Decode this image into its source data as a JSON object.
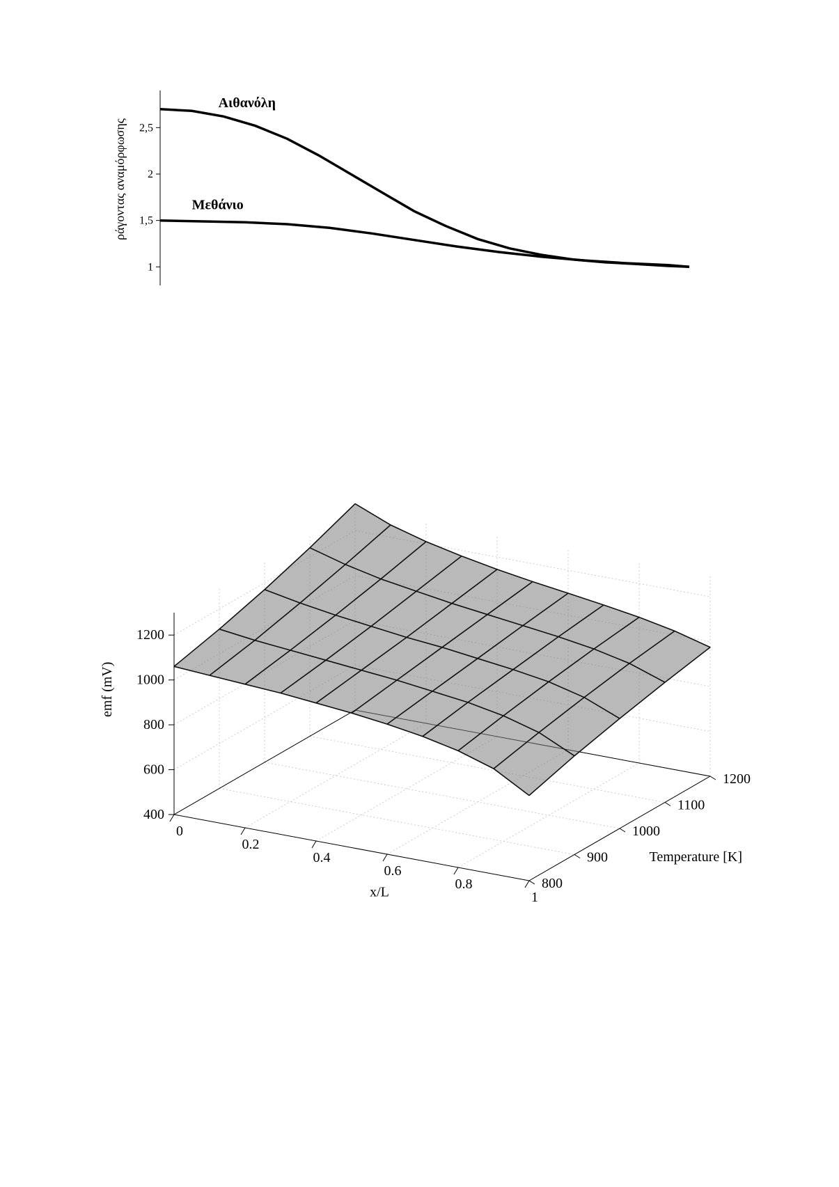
{
  "top_chart": {
    "type": "line",
    "y_axis_title": "ράγοντας αναμόρφωσης",
    "y_ticks": [
      1,
      1.5,
      2,
      2.5
    ],
    "y_tick_labels": [
      "1",
      "1,5",
      "2",
      "2,5"
    ],
    "ylim": [
      0.8,
      2.9
    ],
    "xlim": [
      0,
      1
    ],
    "line_color": "#000000",
    "line_width": 3.5,
    "axis_color": "#000000",
    "tick_fontsize": 16,
    "label_fontsize": 18,
    "series_label_fontsize": 20,
    "background_color": "#ffffff",
    "series": [
      {
        "name": "ethanol",
        "label": "Αιθανόλη",
        "label_x": 0.11,
        "label_y": 2.72,
        "points": [
          [
            0.0,
            2.7
          ],
          [
            0.06,
            2.68
          ],
          [
            0.12,
            2.62
          ],
          [
            0.18,
            2.52
          ],
          [
            0.24,
            2.38
          ],
          [
            0.3,
            2.2
          ],
          [
            0.36,
            2.0
          ],
          [
            0.42,
            1.8
          ],
          [
            0.48,
            1.6
          ],
          [
            0.54,
            1.44
          ],
          [
            0.6,
            1.3
          ],
          [
            0.66,
            1.2
          ],
          [
            0.72,
            1.13
          ],
          [
            0.78,
            1.08
          ],
          [
            0.84,
            1.05
          ],
          [
            0.9,
            1.03
          ],
          [
            0.96,
            1.01
          ],
          [
            1.0,
            1.0
          ]
        ]
      },
      {
        "name": "methane",
        "label": "Μεθάνιο",
        "label_x": 0.06,
        "label_y": 1.62,
        "points": [
          [
            0.0,
            1.5
          ],
          [
            0.08,
            1.49
          ],
          [
            0.16,
            1.48
          ],
          [
            0.24,
            1.46
          ],
          [
            0.32,
            1.42
          ],
          [
            0.4,
            1.36
          ],
          [
            0.48,
            1.29
          ],
          [
            0.56,
            1.22
          ],
          [
            0.64,
            1.16
          ],
          [
            0.72,
            1.11
          ],
          [
            0.8,
            1.07
          ],
          [
            0.88,
            1.04
          ],
          [
            0.96,
            1.02
          ],
          [
            1.0,
            1.0
          ]
        ]
      }
    ]
  },
  "bottom_chart": {
    "type": "surface3d",
    "z_axis_title": "emf (mV)",
    "x_axis_title": "x/L",
    "y_axis_title": "Temperature [K]",
    "z_ticks": [
      400,
      600,
      800,
      1000,
      1200
    ],
    "z_lim": [
      400,
      1300
    ],
    "x_ticks": [
      0,
      0.2,
      0.4,
      0.6,
      0.8,
      1
    ],
    "x_lim": [
      0,
      1
    ],
    "y_ticks": [
      800,
      900,
      1000,
      1100,
      1200
    ],
    "y_lim": [
      800,
      1200
    ],
    "surface_color": "#808080",
    "surface_opacity": 0.55,
    "wire_color": "#333333",
    "grid_color": "#cccccc",
    "axis_color": "#000000",
    "tick_fontsize": 20,
    "label_fontsize": 20,
    "background_color": "#ffffff",
    "x_samples": [
      0,
      0.1,
      0.2,
      0.3,
      0.4,
      0.5,
      0.6,
      0.7,
      0.8,
      0.9,
      1.0
    ],
    "y_samples": [
      800,
      900,
      1000,
      1100,
      1200
    ],
    "z_grid": [
      [
        1060,
        1050,
        1040,
        1030,
        1015,
        1000,
        980,
        955,
        920,
        870,
        780
      ],
      [
        1110,
        1090,
        1075,
        1060,
        1045,
        1030,
        1010,
        990,
        960,
        915,
        840
      ],
      [
        1170,
        1140,
        1115,
        1095,
        1075,
        1060,
        1040,
        1020,
        995,
        955,
        890
      ],
      [
        1240,
        1195,
        1160,
        1135,
        1110,
        1090,
        1070,
        1050,
        1025,
        990,
        935
      ],
      [
        1320,
        1255,
        1210,
        1175,
        1145,
        1120,
        1098,
        1075,
        1050,
        1018,
        975
      ]
    ]
  }
}
